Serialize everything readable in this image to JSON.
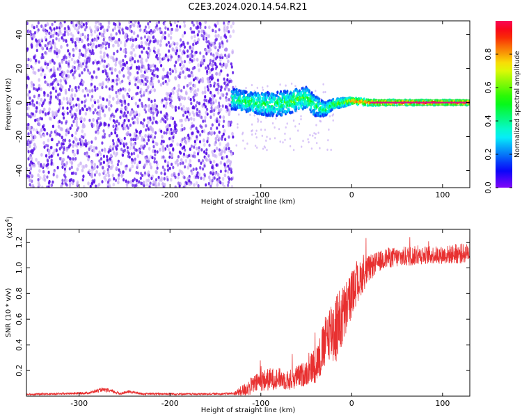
{
  "title": "C2E3.2024.020.14.54.R21",
  "colors": {
    "snr_line": "#e83030",
    "noise_dot": "#5a12e8",
    "noise_faint": "#c9aef5",
    "signal_core": "#e0108a",
    "signal_green": "#30e040",
    "signal_cyan": "#18c8e8",
    "signal_blue": "#2a28f0"
  },
  "chart_data": [
    {
      "type": "heatmap",
      "name": "spectrogram",
      "xlabel": "Height of straight line (km)",
      "ylabel": "Frequency (Hz)",
      "xlim": [
        -358,
        130
      ],
      "ylim": [
        -50,
        48
      ],
      "x_ticks": [
        -300,
        -200,
        -100,
        0,
        100
      ],
      "y_ticks": [
        -40,
        -20,
        0,
        20,
        40
      ],
      "x_tick_labels": [
        "-300",
        "-200",
        "-100",
        "0",
        "100"
      ],
      "y_tick_labels": [
        "-40",
        "-20",
        "0",
        "20",
        "40"
      ],
      "noise_region": {
        "x_from": -358,
        "x_to": -130,
        "frequency_span": [
          -50,
          48
        ]
      },
      "signal_band": {
        "x": [
          -130,
          -110,
          -90,
          -70,
          -50,
          -40,
          -30,
          -20,
          -10,
          0,
          20,
          40,
          80,
          130
        ],
        "center": [
          2,
          0,
          -1,
          0,
          3,
          -2,
          -4,
          -1,
          0,
          1,
          0,
          0,
          0,
          0
        ],
        "halfwidth": [
          6,
          6,
          7,
          7,
          6,
          6,
          4,
          3,
          2.5,
          2,
          1.8,
          1.6,
          1.5,
          1.5
        ],
        "peak_amplitude": [
          0.45,
          0.55,
          0.5,
          0.55,
          0.6,
          0.55,
          0.5,
          0.6,
          0.7,
          0.85,
          0.9,
          0.95,
          0.97,
          0.98
        ]
      },
      "colorbar": {
        "label": "Normalized spectral amplitude",
        "range": [
          0,
          1
        ],
        "ticks": [
          0.0,
          0.2,
          0.4,
          0.6,
          0.8
        ],
        "tick_labels": [
          "0.0",
          "0.2",
          "0.4",
          "0.6",
          "0.8"
        ]
      }
    },
    {
      "type": "line",
      "name": "snr",
      "xlabel": "Height of straight line (km)",
      "ylabel": "SNR (10 * v/v)",
      "y_multiplier_base": "(x10",
      "y_multiplier_exp": "4",
      "y_multiplier_close": ")",
      "xlim": [
        -358,
        130
      ],
      "ylim": [
        0,
        1.3
      ],
      "x_ticks": [
        -300,
        -200,
        -100,
        0,
        100
      ],
      "x_tick_labels": [
        "-300",
        "-200",
        "-100",
        "0",
        "100"
      ],
      "y_ticks": [
        0.2,
        0.4,
        0.6,
        0.8,
        1.0,
        1.2
      ],
      "y_tick_labels": [
        "0.2",
        "0.4",
        "0.6",
        "0.8",
        "1.0",
        "1.2"
      ],
      "series": [
        {
          "name": "SNR",
          "x": [
            -358,
            -320,
            -290,
            -275,
            -268,
            -255,
            -245,
            -230,
            -200,
            -170,
            -150,
            -130,
            -120,
            -110,
            -100,
            -90,
            -80,
            -70,
            -60,
            -50,
            -40,
            -35,
            -30,
            -25,
            -20,
            -15,
            -10,
            -5,
            0,
            10,
            20,
            30,
            40,
            50,
            60,
            80,
            100,
            120,
            130
          ],
          "mean": [
            0.015,
            0.018,
            0.025,
            0.05,
            0.045,
            0.02,
            0.035,
            0.018,
            0.018,
            0.016,
            0.018,
            0.02,
            0.04,
            0.08,
            0.12,
            0.13,
            0.14,
            0.12,
            0.15,
            0.18,
            0.25,
            0.3,
            0.4,
            0.5,
            0.52,
            0.55,
            0.62,
            0.7,
            0.8,
            0.92,
            1.0,
            1.05,
            1.08,
            1.08,
            1.09,
            1.1,
            1.1,
            1.11,
            1.12
          ],
          "spread": [
            0.008,
            0.008,
            0.01,
            0.015,
            0.015,
            0.01,
            0.012,
            0.008,
            0.008,
            0.008,
            0.008,
            0.01,
            0.05,
            0.07,
            0.08,
            0.09,
            0.08,
            0.08,
            0.09,
            0.1,
            0.15,
            0.18,
            0.2,
            0.22,
            0.3,
            0.28,
            0.25,
            0.22,
            0.18,
            0.14,
            0.1,
            0.08,
            0.08,
            0.08,
            0.08,
            0.07,
            0.07,
            0.08,
            0.07
          ]
        }
      ]
    }
  ]
}
